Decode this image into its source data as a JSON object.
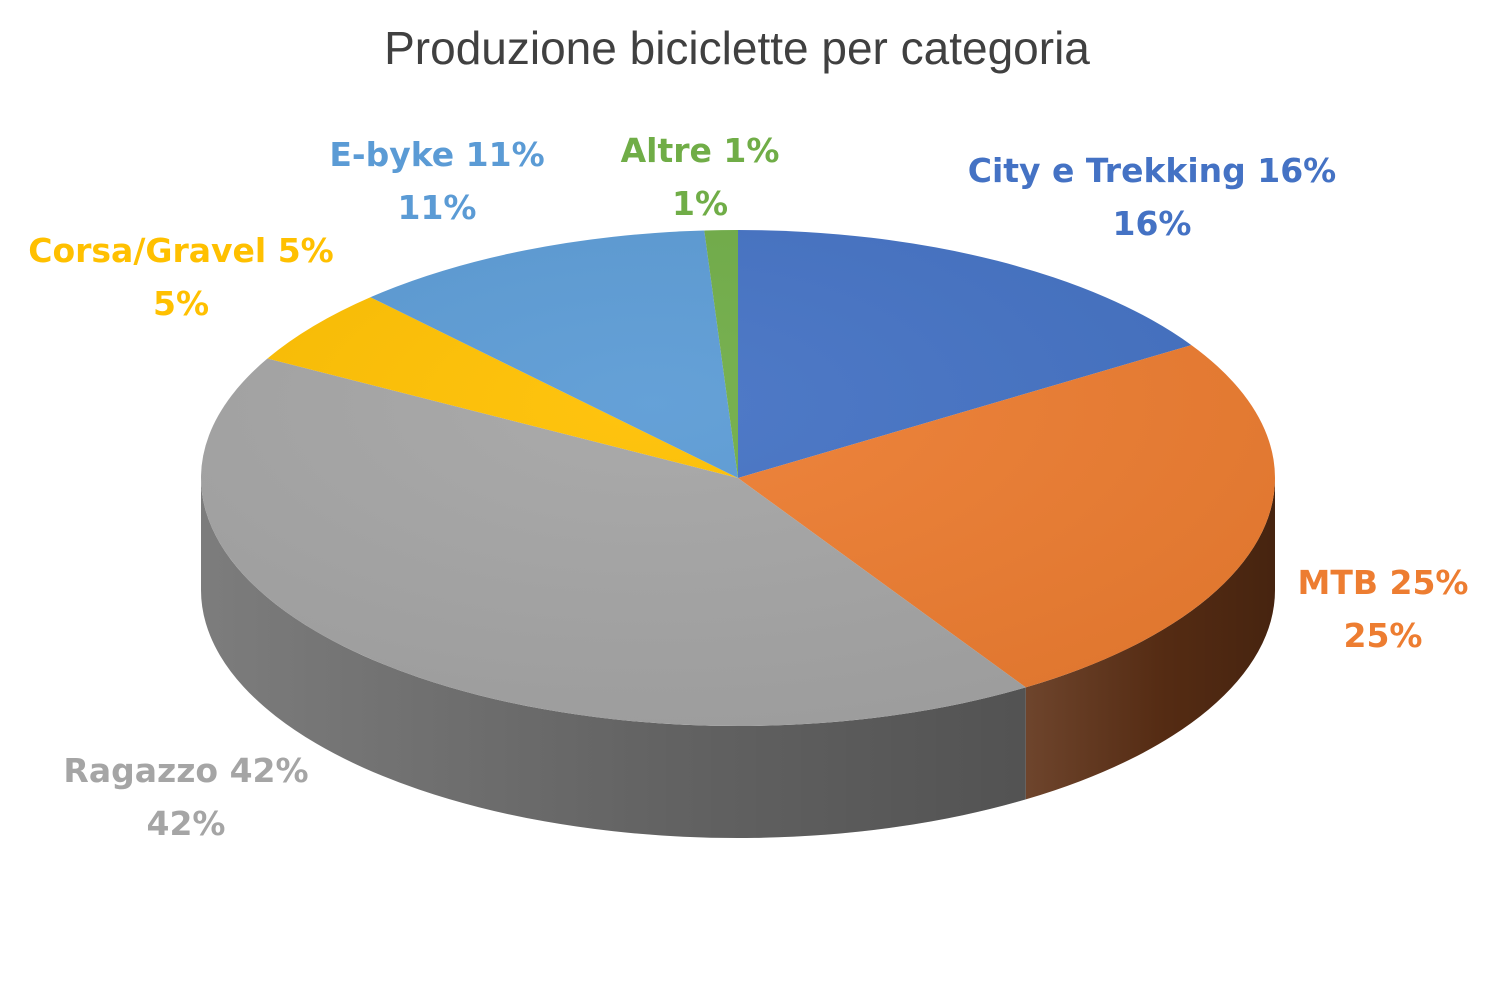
{
  "chart_data": {
    "type": "pie",
    "title": "Produzione biciclette per categoria",
    "unit": "%",
    "slices": [
      {
        "category": "City e Trekking 16%",
        "value": 16,
        "label": "16%",
        "color": "#4472C4",
        "side_color": "#2E5597"
      },
      {
        "category": "MTB 25%",
        "value": 25,
        "label": "25%",
        "color": "#ED7D31",
        "side_color": "#5E3015"
      },
      {
        "category": "Ragazzo 42%",
        "value": 42,
        "label": "42%",
        "color": "#A5A5A5",
        "side_color": "#6E6E6E"
      },
      {
        "category": "Corsa/Gravel 5%",
        "value": 5,
        "label": "5%",
        "color": "#FFC000",
        "side_color": "#9A7400"
      },
      {
        "category": "E-byke 11%",
        "value": 11,
        "label": "11%",
        "color": "#5B9BD5",
        "side_color": "#3A6A97"
      },
      {
        "category": "Altre 1%",
        "value": 1,
        "label": "1%",
        "color": "#70AD47",
        "side_color": "#4A7A2C"
      }
    ],
    "start_angle": "12 o'clock",
    "direction": "clockwise",
    "style": "3D",
    "legend": "none",
    "data_labels": "outside"
  }
}
